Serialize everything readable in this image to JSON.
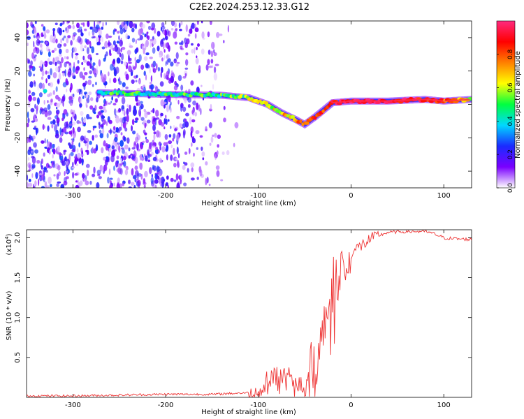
{
  "figure_title": "C2E2.2024.253.12.33.G12",
  "chart_data": [
    {
      "type": "heatmap",
      "title": "C2E2.2024.253.12.33.G12",
      "xlabel": "Height of straight line (km)",
      "ylabel": "Frequency (Hz)",
      "xlim": [
        -350,
        130
      ],
      "ylim": [
        -50,
        50
      ],
      "x_ticks": [
        -300,
        -200,
        -100,
        0,
        100
      ],
      "x_tick_labels": [
        "-300",
        "-200",
        "-100",
        "0",
        "100"
      ],
      "y_ticks": [
        -40,
        -20,
        0,
        20,
        40
      ],
      "y_tick_labels": [
        "-40",
        "-20",
        "0",
        "20",
        "40"
      ],
      "colorbar": {
        "label": "Normalized spectral amplitude",
        "range": [
          0,
          1
        ],
        "ticks": [
          0.0,
          0.2,
          0.4,
          0.6,
          0.8
        ],
        "tick_labels": [
          "0.0",
          "0.2",
          "0.4",
          "0.6",
          "0.8"
        ],
        "colormap": [
          "#ffffff",
          "#7a00ff",
          "#1a2bff",
          "#00d8ff",
          "#00ff40",
          "#ffff00",
          "#ff8000",
          "#ff0000",
          "#ff2a7f"
        ]
      },
      "noise_region_x": [
        -350,
        -140
      ],
      "ridge": {
        "x": [
          -330,
          -270,
          -200,
          -140,
          -110,
          -90,
          -75,
          -60,
          -50,
          -40,
          -20,
          0,
          40,
          80,
          100,
          130
        ],
        "freq": [
          8,
          7,
          6,
          5.5,
          4,
          0,
          -5,
          -9,
          -12,
          -8,
          1,
          2,
          2,
          3,
          2,
          3
        ],
        "amplitude": [
          0.4,
          0.45,
          0.45,
          0.5,
          0.55,
          0.6,
          0.65,
          0.7,
          0.75,
          0.8,
          0.9,
          0.95,
          0.95,
          0.9,
          0.8,
          0.6
        ]
      }
    },
    {
      "type": "line",
      "xlabel": "Height of straight line (km)",
      "ylabel": "SNR (10 * v/v)",
      "multiplier": "(x10",
      "multiplier_exp": "4",
      "multiplier_close": ")",
      "xlim": [
        -350,
        130
      ],
      "ylim": [
        0,
        2.1
      ],
      "x_ticks": [
        -300,
        -200,
        -100,
        0,
        100
      ],
      "x_tick_labels": [
        "-300",
        "-200",
        "-100",
        "0",
        "100"
      ],
      "y_ticks": [
        0.5,
        1.0,
        1.5,
        2.0
      ],
      "y_tick_labels": [
        "0.5",
        "1.0",
        "1.5",
        "2.0"
      ],
      "color": "#ee3333",
      "series": [
        {
          "name": "SNR",
          "x": [
            -350,
            -300,
            -250,
            -200,
            -150,
            -110,
            -100,
            -90,
            -80,
            -70,
            -60,
            -50,
            -45,
            -40,
            -35,
            -30,
            -25,
            -20,
            -15,
            -10,
            -5,
            0,
            10,
            20,
            30,
            40,
            60,
            80,
            90,
            100,
            110,
            130
          ],
          "y": [
            0.02,
            0.02,
            0.03,
            0.04,
            0.04,
            0.06,
            0.12,
            0.25,
            0.3,
            0.28,
            0.22,
            0.18,
            0.3,
            0.45,
            0.7,
            0.95,
            1.2,
            1.45,
            1.6,
            1.7,
            1.75,
            1.82,
            1.9,
            1.98,
            2.03,
            2.07,
            2.08,
            2.08,
            2.05,
            2.0,
            1.99,
            1.98
          ]
        }
      ]
    }
  ]
}
